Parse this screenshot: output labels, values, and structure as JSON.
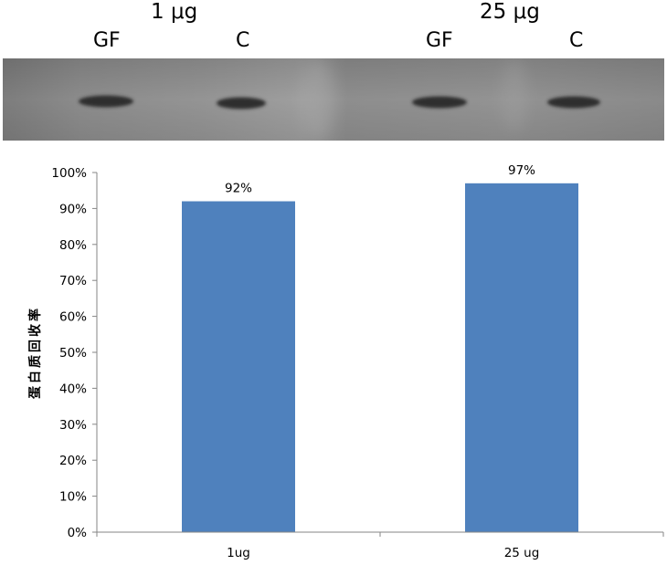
{
  "blot": {
    "groups": [
      {
        "label": "1 μg",
        "lanes": [
          "GF",
          "C"
        ]
      },
      {
        "label": "25 μg",
        "lanes": [
          "GF",
          "C"
        ]
      }
    ]
  },
  "chart_data": {
    "type": "bar",
    "categories": [
      "1ug",
      "25 ug"
    ],
    "values": [
      92,
      97
    ],
    "data_labels": [
      "92%",
      "97%"
    ],
    "ylabel": "蛋白质回收率",
    "ylim": [
      0,
      100
    ],
    "yticks": [
      "0%",
      "10%",
      "20%",
      "30%",
      "40%",
      "50%",
      "60%",
      "70%",
      "80%",
      "90%",
      "100%"
    ],
    "bar_color": "#4f81bd",
    "grid": false,
    "legend": "none"
  }
}
